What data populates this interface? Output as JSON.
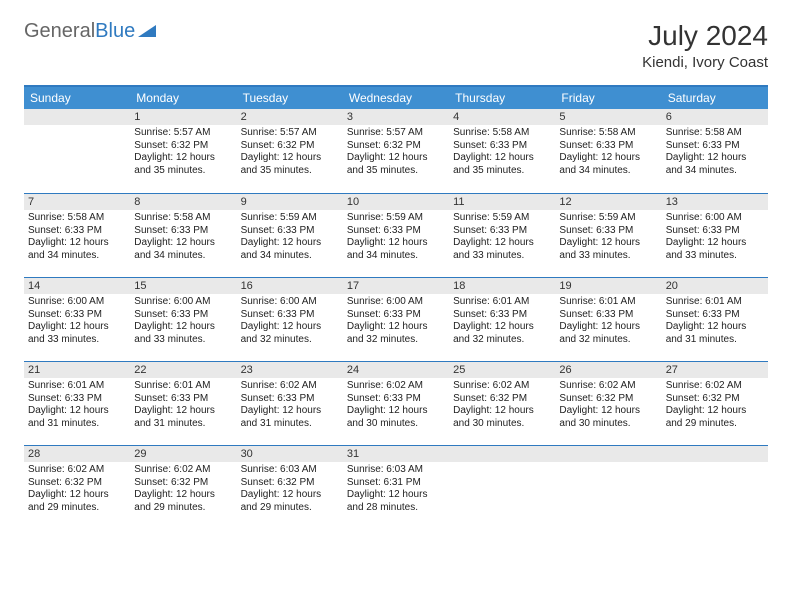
{
  "header": {
    "brand1": "General",
    "brand2": "Blue",
    "month": "July 2024",
    "location": "Kiendi, Ivory Coast"
  },
  "style": {
    "header_bg": "#3f8fd1",
    "header_border": "#2f7ac0",
    "daynum_bg": "#e9e9e9",
    "text_color": "#222222",
    "background": "#ffffff",
    "font_family": "Arial",
    "th_fontsize": 12,
    "cell_fontsize": 10
  },
  "dow": [
    "Sunday",
    "Monday",
    "Tuesday",
    "Wednesday",
    "Thursday",
    "Friday",
    "Saturday"
  ],
  "first_day_index": 1,
  "days": [
    {
      "n": 1,
      "sr": "5:57 AM",
      "ss": "6:32 PM",
      "dl": "12 hours and 35 minutes."
    },
    {
      "n": 2,
      "sr": "5:57 AM",
      "ss": "6:32 PM",
      "dl": "12 hours and 35 minutes."
    },
    {
      "n": 3,
      "sr": "5:57 AM",
      "ss": "6:32 PM",
      "dl": "12 hours and 35 minutes."
    },
    {
      "n": 4,
      "sr": "5:58 AM",
      "ss": "6:33 PM",
      "dl": "12 hours and 35 minutes."
    },
    {
      "n": 5,
      "sr": "5:58 AM",
      "ss": "6:33 PM",
      "dl": "12 hours and 34 minutes."
    },
    {
      "n": 6,
      "sr": "5:58 AM",
      "ss": "6:33 PM",
      "dl": "12 hours and 34 minutes."
    },
    {
      "n": 7,
      "sr": "5:58 AM",
      "ss": "6:33 PM",
      "dl": "12 hours and 34 minutes."
    },
    {
      "n": 8,
      "sr": "5:58 AM",
      "ss": "6:33 PM",
      "dl": "12 hours and 34 minutes."
    },
    {
      "n": 9,
      "sr": "5:59 AM",
      "ss": "6:33 PM",
      "dl": "12 hours and 34 minutes."
    },
    {
      "n": 10,
      "sr": "5:59 AM",
      "ss": "6:33 PM",
      "dl": "12 hours and 34 minutes."
    },
    {
      "n": 11,
      "sr": "5:59 AM",
      "ss": "6:33 PM",
      "dl": "12 hours and 33 minutes."
    },
    {
      "n": 12,
      "sr": "5:59 AM",
      "ss": "6:33 PM",
      "dl": "12 hours and 33 minutes."
    },
    {
      "n": 13,
      "sr": "6:00 AM",
      "ss": "6:33 PM",
      "dl": "12 hours and 33 minutes."
    },
    {
      "n": 14,
      "sr": "6:00 AM",
      "ss": "6:33 PM",
      "dl": "12 hours and 33 minutes."
    },
    {
      "n": 15,
      "sr": "6:00 AM",
      "ss": "6:33 PM",
      "dl": "12 hours and 33 minutes."
    },
    {
      "n": 16,
      "sr": "6:00 AM",
      "ss": "6:33 PM",
      "dl": "12 hours and 32 minutes."
    },
    {
      "n": 17,
      "sr": "6:00 AM",
      "ss": "6:33 PM",
      "dl": "12 hours and 32 minutes."
    },
    {
      "n": 18,
      "sr": "6:01 AM",
      "ss": "6:33 PM",
      "dl": "12 hours and 32 minutes."
    },
    {
      "n": 19,
      "sr": "6:01 AM",
      "ss": "6:33 PM",
      "dl": "12 hours and 32 minutes."
    },
    {
      "n": 20,
      "sr": "6:01 AM",
      "ss": "6:33 PM",
      "dl": "12 hours and 31 minutes."
    },
    {
      "n": 21,
      "sr": "6:01 AM",
      "ss": "6:33 PM",
      "dl": "12 hours and 31 minutes."
    },
    {
      "n": 22,
      "sr": "6:01 AM",
      "ss": "6:33 PM",
      "dl": "12 hours and 31 minutes."
    },
    {
      "n": 23,
      "sr": "6:02 AM",
      "ss": "6:33 PM",
      "dl": "12 hours and 31 minutes."
    },
    {
      "n": 24,
      "sr": "6:02 AM",
      "ss": "6:33 PM",
      "dl": "12 hours and 30 minutes."
    },
    {
      "n": 25,
      "sr": "6:02 AM",
      "ss": "6:32 PM",
      "dl": "12 hours and 30 minutes."
    },
    {
      "n": 26,
      "sr": "6:02 AM",
      "ss": "6:32 PM",
      "dl": "12 hours and 30 minutes."
    },
    {
      "n": 27,
      "sr": "6:02 AM",
      "ss": "6:32 PM",
      "dl": "12 hours and 29 minutes."
    },
    {
      "n": 28,
      "sr": "6:02 AM",
      "ss": "6:32 PM",
      "dl": "12 hours and 29 minutes."
    },
    {
      "n": 29,
      "sr": "6:02 AM",
      "ss": "6:32 PM",
      "dl": "12 hours and 29 minutes."
    },
    {
      "n": 30,
      "sr": "6:03 AM",
      "ss": "6:32 PM",
      "dl": "12 hours and 29 minutes."
    },
    {
      "n": 31,
      "sr": "6:03 AM",
      "ss": "6:31 PM",
      "dl": "12 hours and 28 minutes."
    }
  ],
  "labels": {
    "sunrise": "Sunrise:",
    "sunset": "Sunset:",
    "daylight": "Daylight:"
  }
}
